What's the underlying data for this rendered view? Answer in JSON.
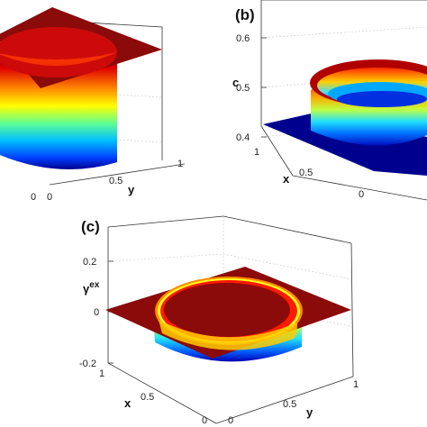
{
  "colors": {
    "plateau": "#8b0a0a",
    "sheet_low": "#00008f",
    "colormap": "jet"
  },
  "chart_data": [
    {
      "type": "surface",
      "panel": "(a)",
      "shape": "cylinder-plateau",
      "tick_labels": {
        "x": [
          "0"
        ],
        "y": [
          "0",
          "0.5",
          "1"
        ],
        "z": []
      },
      "xlabel": "",
      "ylabel": "y",
      "zlabel": ""
    },
    {
      "type": "surface",
      "panel": "(b)",
      "panel_label": "(b)",
      "shape": "ring-on-sheet",
      "zlim": [
        0.4,
        0.6
      ],
      "tick_labels": {
        "x": [
          "1",
          "0.5",
          "0"
        ],
        "y": [],
        "z": [
          "0.4",
          "0.5",
          "0.6"
        ]
      },
      "xlabel": "x",
      "ylabel": "",
      "zlabel": "c"
    },
    {
      "type": "surface",
      "panel": "(c)",
      "panel_label": "(c)",
      "shape": "plateau-with-rim",
      "zlim": [
        -0.2,
        0.2
      ],
      "tick_labels": {
        "x": [
          "1",
          "0.5",
          "0"
        ],
        "y": [
          "0",
          "0.5",
          "1"
        ],
        "z": [
          "-0.2",
          "0",
          "0.2"
        ]
      },
      "xlabel": "x",
      "ylabel": "y",
      "zlabel_main": "γ",
      "zlabel_sup": "ex"
    }
  ]
}
